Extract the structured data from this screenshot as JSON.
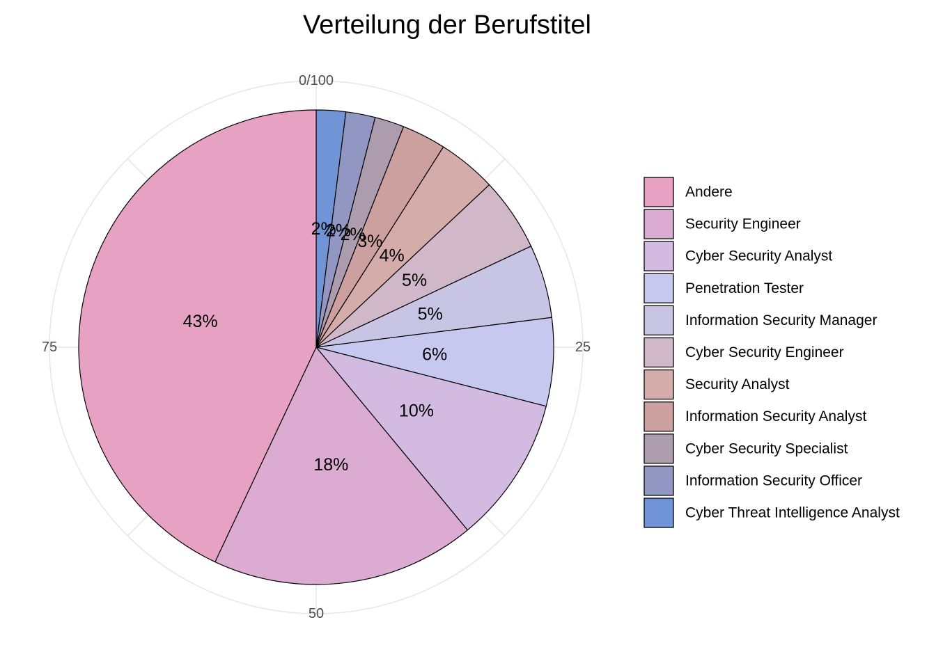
{
  "chart_data": {
    "type": "pie",
    "title": "Verteilung der Berufstitel",
    "slices": [
      {
        "name": "Cyber Threat Intelligence Analyst",
        "value": 2,
        "label": "2%",
        "color": "#7194d6"
      },
      {
        "name": "Information Security Officer",
        "value": 2,
        "label": "2%",
        "color": "#9296c3"
      },
      {
        "name": "Cyber Security Specialist",
        "value": 2,
        "label": "2%",
        "color": "#ad9cae"
      },
      {
        "name": "Information Security Analyst",
        "value": 3,
        "label": "3%",
        "color": "#cba09e"
      },
      {
        "name": "Security Analyst",
        "value": 4,
        "label": "4%",
        "color": "#d4acaa"
      },
      {
        "name": "Cyber Security Engineer",
        "value": 5,
        "label": "5%",
        "color": "#d0b8c9"
      },
      {
        "name": "Information Security Manager",
        "value": 5,
        "label": "5%",
        "color": "#c8c4e4"
      },
      {
        "name": "Penetration Tester",
        "value": 6,
        "label": "6%",
        "color": "#c7c8ef"
      },
      {
        "name": "Cyber Security Analyst",
        "value": 10,
        "label": "10%",
        "color": "#d3bae1"
      },
      {
        "name": "Security Engineer",
        "value": 18,
        "label": "18%",
        "color": "#dcabd2"
      },
      {
        "name": "Andere",
        "value": 43,
        "label": "43%",
        "color": "#e6a1c3"
      }
    ],
    "legend_order": [
      "Andere",
      "Security Engineer",
      "Cyber Security Analyst",
      "Penetration Tester",
      "Information Security Manager",
      "Cyber Security Engineer",
      "Security Analyst",
      "Information Security Analyst",
      "Cyber Security Specialist",
      "Information Security Officer",
      "Cyber Threat Intelligence Analyst"
    ],
    "angular_axis": {
      "ticks": [
        {
          "value": 0,
          "label": "0/100"
        },
        {
          "value": 25,
          "label": "25"
        },
        {
          "value": 50,
          "label": "50"
        },
        {
          "value": 75,
          "label": "75"
        }
      ],
      "range": [
        0,
        100
      ]
    },
    "legend_position": "right",
    "grid": true
  }
}
